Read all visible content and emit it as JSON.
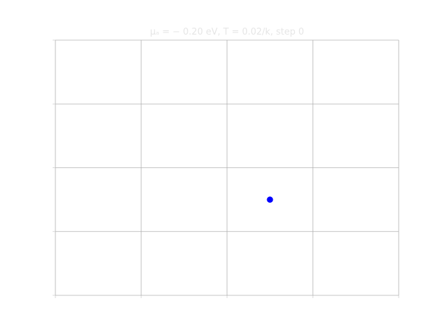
{
  "chart_data": {
    "type": "scatter",
    "title": "μₐ = − 0.20 eV, T = 0.02/k, step 0",
    "xlabel": "",
    "ylabel": "",
    "xlim": [
      0,
      4
    ],
    "ylim": [
      0,
      4
    ],
    "grid": true,
    "x_ticks": [
      0,
      1,
      2,
      3,
      4
    ],
    "y_ticks": [
      0,
      1,
      2,
      3,
      4
    ],
    "series": [
      {
        "x": [
          2.5
        ],
        "y": [
          1.5
        ],
        "color": "#0000ff"
      }
    ]
  }
}
